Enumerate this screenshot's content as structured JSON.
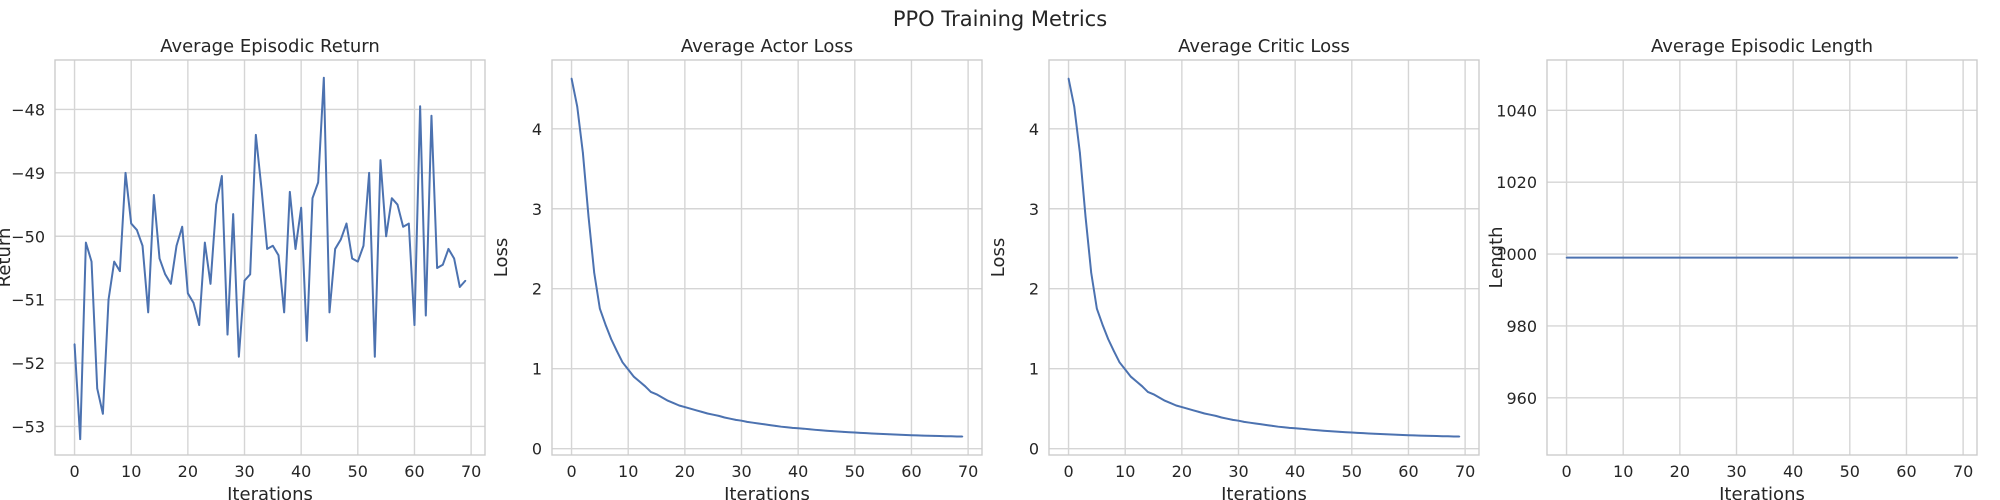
{
  "figure": {
    "title": "PPO Training Metrics"
  },
  "chart_data": [
    {
      "type": "line",
      "title": "Average Episodic Return",
      "xlabel": "Iterations",
      "ylabel": "Return",
      "xlim": [
        -3.45,
        72.45
      ],
      "ylim": [
        -53.45,
        -47.22
      ],
      "xticks": [
        0,
        10,
        20,
        30,
        40,
        50,
        60,
        70
      ],
      "yticks": [
        -53,
        -52,
        -51,
        -50,
        -49,
        -48
      ],
      "grid": true,
      "color": "#4c72b0",
      "x": [
        0,
        1,
        2,
        3,
        4,
        5,
        6,
        7,
        8,
        9,
        10,
        11,
        12,
        13,
        14,
        15,
        16,
        17,
        18,
        19,
        20,
        21,
        22,
        23,
        24,
        25,
        26,
        27,
        28,
        29,
        30,
        31,
        32,
        33,
        34,
        35,
        36,
        37,
        38,
        39,
        40,
        41,
        42,
        43,
        44,
        45,
        46,
        47,
        48,
        49,
        50,
        51,
        52,
        53,
        54,
        55,
        56,
        57,
        58,
        59,
        60,
        61,
        62,
        63,
        64,
        65,
        66,
        67,
        68,
        69
      ],
      "y": [
        -51.7,
        -53.2,
        -50.1,
        -50.4,
        -52.4,
        -52.8,
        -51.0,
        -50.4,
        -50.55,
        -49.0,
        -49.8,
        -49.9,
        -50.15,
        -51.2,
        -49.35,
        -50.35,
        -50.6,
        -50.75,
        -50.15,
        -49.85,
        -50.9,
        -51.05,
        -51.4,
        -50.1,
        -50.75,
        -49.5,
        -49.05,
        -51.55,
        -49.65,
        -51.9,
        -50.7,
        -50.6,
        -48.4,
        -49.25,
        -50.2,
        -50.15,
        -50.3,
        -51.2,
        -49.3,
        -50.2,
        -49.55,
        -51.65,
        -49.4,
        -49.15,
        -47.5,
        -51.2,
        -50.2,
        -50.05,
        -49.8,
        -50.35,
        -50.4,
        -50.15,
        -49.0,
        -51.9,
        -48.8,
        -50.0,
        -49.4,
        -49.5,
        -49.85,
        -49.8,
        -51.4,
        -47.95,
        -51.25,
        -48.1,
        -50.5,
        -50.45,
        -50.2,
        -50.35,
        -50.8,
        -50.7
      ]
    },
    {
      "type": "line",
      "title": "Average Actor Loss",
      "xlabel": "Iterations",
      "ylabel": "Loss",
      "xlim": [
        -3.45,
        72.45
      ],
      "ylim": [
        -0.079,
        4.86
      ],
      "xticks": [
        0,
        10,
        20,
        30,
        40,
        50,
        60,
        70
      ],
      "yticks": [
        0,
        1,
        2,
        3,
        4
      ],
      "grid": true,
      "color": "#4c72b0",
      "x": [
        0,
        1,
        2,
        3,
        4,
        5,
        6,
        7,
        8,
        9,
        10,
        11,
        12,
        13,
        14,
        15,
        16,
        17,
        18,
        19,
        20,
        21,
        22,
        23,
        24,
        25,
        26,
        27,
        28,
        29,
        30,
        31,
        32,
        33,
        34,
        35,
        36,
        37,
        38,
        39,
        40,
        41,
        42,
        43,
        44,
        45,
        46,
        47,
        48,
        49,
        50,
        51,
        52,
        53,
        54,
        55,
        56,
        57,
        58,
        59,
        60,
        61,
        62,
        63,
        64,
        65,
        66,
        67,
        68,
        69
      ],
      "y": [
        4.63,
        4.28,
        3.7,
        2.9,
        2.2,
        1.75,
        1.55,
        1.37,
        1.22,
        1.08,
        0.99,
        0.9,
        0.84,
        0.78,
        0.71,
        0.68,
        0.64,
        0.6,
        0.57,
        0.54,
        0.52,
        0.5,
        0.48,
        0.46,
        0.44,
        0.425,
        0.41,
        0.39,
        0.375,
        0.36,
        0.35,
        0.335,
        0.325,
        0.315,
        0.305,
        0.295,
        0.285,
        0.275,
        0.268,
        0.26,
        0.255,
        0.25,
        0.243,
        0.236,
        0.23,
        0.225,
        0.22,
        0.215,
        0.21,
        0.206,
        0.202,
        0.198,
        0.194,
        0.19,
        0.186,
        0.183,
        0.18,
        0.177,
        0.174,
        0.171,
        0.168,
        0.166,
        0.164,
        0.162,
        0.16,
        0.158,
        0.156,
        0.155,
        0.153,
        0.152
      ]
    },
    {
      "type": "line",
      "title": "Average Critic Loss",
      "xlabel": "Iterations",
      "ylabel": "Loss",
      "xlim": [
        -3.45,
        72.45
      ],
      "ylim": [
        -0.079,
        4.86
      ],
      "xticks": [
        0,
        10,
        20,
        30,
        40,
        50,
        60,
        70
      ],
      "yticks": [
        0,
        1,
        2,
        3,
        4
      ],
      "grid": true,
      "color": "#4c72b0",
      "x": [
        0,
        1,
        2,
        3,
        4,
        5,
        6,
        7,
        8,
        9,
        10,
        11,
        12,
        13,
        14,
        15,
        16,
        17,
        18,
        19,
        20,
        21,
        22,
        23,
        24,
        25,
        26,
        27,
        28,
        29,
        30,
        31,
        32,
        33,
        34,
        35,
        36,
        37,
        38,
        39,
        40,
        41,
        42,
        43,
        44,
        45,
        46,
        47,
        48,
        49,
        50,
        51,
        52,
        53,
        54,
        55,
        56,
        57,
        58,
        59,
        60,
        61,
        62,
        63,
        64,
        65,
        66,
        67,
        68,
        69
      ],
      "y": [
        4.63,
        4.28,
        3.7,
        2.9,
        2.2,
        1.75,
        1.55,
        1.37,
        1.22,
        1.08,
        0.99,
        0.9,
        0.84,
        0.78,
        0.71,
        0.68,
        0.64,
        0.6,
        0.57,
        0.54,
        0.52,
        0.5,
        0.48,
        0.46,
        0.44,
        0.425,
        0.41,
        0.39,
        0.375,
        0.36,
        0.35,
        0.335,
        0.325,
        0.315,
        0.305,
        0.295,
        0.285,
        0.275,
        0.268,
        0.26,
        0.255,
        0.25,
        0.243,
        0.236,
        0.23,
        0.225,
        0.22,
        0.215,
        0.21,
        0.206,
        0.202,
        0.198,
        0.194,
        0.19,
        0.186,
        0.183,
        0.18,
        0.177,
        0.174,
        0.171,
        0.168,
        0.166,
        0.164,
        0.162,
        0.16,
        0.158,
        0.156,
        0.155,
        0.153,
        0.152
      ]
    },
    {
      "type": "line",
      "title": "Average Episodic Length",
      "xlabel": "Iterations",
      "ylabel": "Length",
      "xlim": [
        -3.45,
        72.45
      ],
      "ylim": [
        944.1,
        1054.0
      ],
      "xticks": [
        0,
        10,
        20,
        30,
        40,
        50,
        60,
        70
      ],
      "yticks": [
        960,
        980,
        1000,
        1020,
        1040
      ],
      "grid": true,
      "color": "#4c72b0",
      "x": [
        0,
        69
      ],
      "y": [
        999,
        999
      ]
    }
  ]
}
